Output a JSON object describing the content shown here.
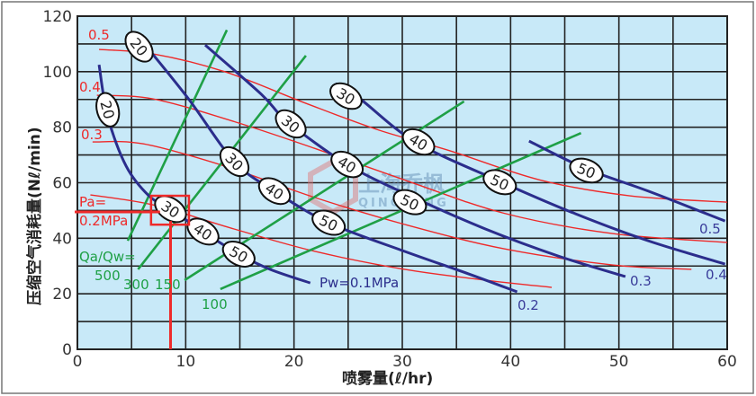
{
  "chart_data": {
    "type": "line",
    "xlabel": "喷雾量(ℓ/hr)",
    "ylabel": "压缩空气消耗量(Nℓ/min)",
    "xlim": [
      0,
      60
    ],
    "ylim": [
      0,
      120
    ],
    "x_ticks": [
      "0",
      "10",
      "20",
      "30",
      "40",
      "50",
      "60"
    ],
    "y_ticks": [
      "0",
      "20",
      "40",
      "60",
      "80",
      "100",
      "120"
    ],
    "grid": true,
    "grid_step": {
      "x": 5,
      "y": 10
    },
    "background_color": "#c8e9f8",
    "colors": {
      "water_pressure": "#2b2d8c",
      "air_pressure": "#ee2a2a",
      "ratio": "#1fa046",
      "highlight": "#ee2a2a"
    },
    "water_pressure_series": [
      {
        "name": "Pw=0.1MPa",
        "points": [
          [
            2.0,
            102.5
          ],
          [
            2.8,
            83.8
          ],
          [
            4.5,
            66
          ],
          [
            6.6,
            55.3
          ],
          [
            8.6,
            50.5
          ],
          [
            11.6,
            42.4
          ],
          [
            14.9,
            34.3
          ],
          [
            17.8,
            28.8
          ],
          [
            21.5,
            23.9
          ]
        ],
        "markers": [
          {
            "x": 2.8,
            "y": 86.3,
            "label": "20"
          },
          {
            "x": 8.6,
            "y": 50.5,
            "label": "30"
          },
          {
            "x": 11.6,
            "y": 42.4,
            "label": "40"
          },
          {
            "x": 14.9,
            "y": 34.3,
            "label": "50"
          }
        ]
      },
      {
        "name": "0.2",
        "points": [
          [
            6.6,
            108
          ],
          [
            10.3,
            90
          ],
          [
            14.5,
            67.6
          ],
          [
            18.2,
            57
          ],
          [
            23.2,
            45.6
          ],
          [
            30.2,
            35.3
          ],
          [
            36.1,
            27.2
          ],
          [
            40.6,
            20.7
          ]
        ],
        "markers": [
          {
            "x": 5.7,
            "y": 109,
            "label": "20"
          },
          {
            "x": 14.5,
            "y": 67.6,
            "label": "30"
          },
          {
            "x": 18.2,
            "y": 57,
            "label": "40"
          },
          {
            "x": 23.2,
            "y": 45.6,
            "label": "50"
          }
        ]
      },
      {
        "name": "0.3",
        "points": [
          [
            11.8,
            109.6
          ],
          [
            17,
            91.8
          ],
          [
            19.4,
            82
          ],
          [
            24.9,
            66.6
          ],
          [
            30.7,
            55.3
          ],
          [
            37.7,
            43.3
          ],
          [
            44.4,
            33.6
          ],
          [
            50.6,
            26.2
          ]
        ],
        "markers": [
          {
            "x": 19.7,
            "y": 81.2,
            "label": "30"
          },
          {
            "x": 24.9,
            "y": 66.6,
            "label": "40"
          },
          {
            "x": 30.7,
            "y": 53,
            "label": "50"
          }
        ]
      },
      {
        "name": "0.4",
        "points": [
          [
            23.8,
            95.7
          ],
          [
            26.1,
            90.2
          ],
          [
            31.2,
            74.7
          ],
          [
            39,
            60.5
          ],
          [
            46,
            48.8
          ],
          [
            52.7,
            39.1
          ],
          [
            59.8,
            30.7
          ]
        ],
        "markers": [
          {
            "x": 24.8,
            "y": 91.2,
            "label": "30"
          },
          {
            "x": 31.5,
            "y": 74.7,
            "label": "40"
          },
          {
            "x": 39,
            "y": 60.2,
            "label": "50"
          }
        ]
      },
      {
        "name": "0.5",
        "points": [
          [
            41.7,
            75
          ],
          [
            47,
            65
          ],
          [
            52.7,
            57
          ],
          [
            59.8,
            46.2
          ]
        ],
        "markers": [
          {
            "x": 47,
            "y": 64.4,
            "label": "50"
          }
        ]
      }
    ],
    "air_pressure_series": [
      {
        "name": "0.5",
        "points": [
          [
            2,
            108
          ],
          [
            7,
            106.4
          ],
          [
            13.6,
            100
          ],
          [
            21.1,
            88.6
          ],
          [
            27.8,
            79
          ],
          [
            34.4,
            71.5
          ],
          [
            42.7,
            61
          ],
          [
            51,
            55.3
          ],
          [
            60,
            53
          ]
        ]
      },
      {
        "name": "0.4",
        "points": [
          [
            1.8,
            91.5
          ],
          [
            7,
            90.2
          ],
          [
            14.5,
            82
          ],
          [
            21.9,
            72.4
          ],
          [
            30.2,
            61
          ],
          [
            39.4,
            49
          ],
          [
            49.4,
            41.7
          ],
          [
            60,
            38.5
          ]
        ]
      },
      {
        "name": "0.3",
        "points": [
          [
            1.4,
            74.7
          ],
          [
            6.1,
            74
          ],
          [
            13.6,
            66
          ],
          [
            21.9,
            54.7
          ],
          [
            30.2,
            45
          ],
          [
            39.4,
            36.2
          ],
          [
            49.4,
            30.4
          ],
          [
            56.7,
            28.8
          ]
        ]
      },
      {
        "name": "Pa=0.2MPa",
        "points": [
          [
            1.2,
            55.6
          ],
          [
            7,
            52
          ],
          [
            14.5,
            43.3
          ],
          [
            21.9,
            35.3
          ],
          [
            30.2,
            28.8
          ],
          [
            37.7,
            24.9
          ],
          [
            43.8,
            22.3
          ]
        ]
      }
    ],
    "ratio_series": [
      {
        "name": "500",
        "points": [
          [
            4.65,
            39.1
          ],
          [
            13.8,
            115
          ]
        ]
      },
      {
        "name": "300",
        "points": [
          [
            5.6,
            28.8
          ],
          [
            21.1,
            105.8
          ]
        ]
      },
      {
        "name": "150",
        "points": [
          [
            9.9,
            24.9
          ],
          [
            35.7,
            89.3
          ]
        ]
      },
      {
        "name": "100",
        "points": [
          [
            13.2,
            21.7
          ],
          [
            46.5,
            77.9
          ]
        ]
      }
    ],
    "labels": {
      "air": {
        "p05": "0.5",
        "p04": "0.4",
        "p03": "0.3",
        "pa_prefix": "Pa=",
        "p02": "0.2MPa"
      },
      "ratio": {
        "prefix": "Qa/Qw=",
        "r500": "500",
        "r300": "300",
        "r150": "150",
        "r100": "100"
      },
      "water": {
        "p01": "Pw=0.1MPa",
        "p02": "0.2",
        "p03": "0.3",
        "p04": "0.4",
        "p05": "0.5"
      }
    },
    "highlight": {
      "x": 8.6,
      "y": 49.5,
      "box": {
        "x": [
          6.8,
          10.3
        ],
        "y": [
          44.9,
          55.3
        ]
      }
    },
    "watermark": {
      "cn": "上海乔枫",
      "en": "QINGFENG"
    }
  }
}
